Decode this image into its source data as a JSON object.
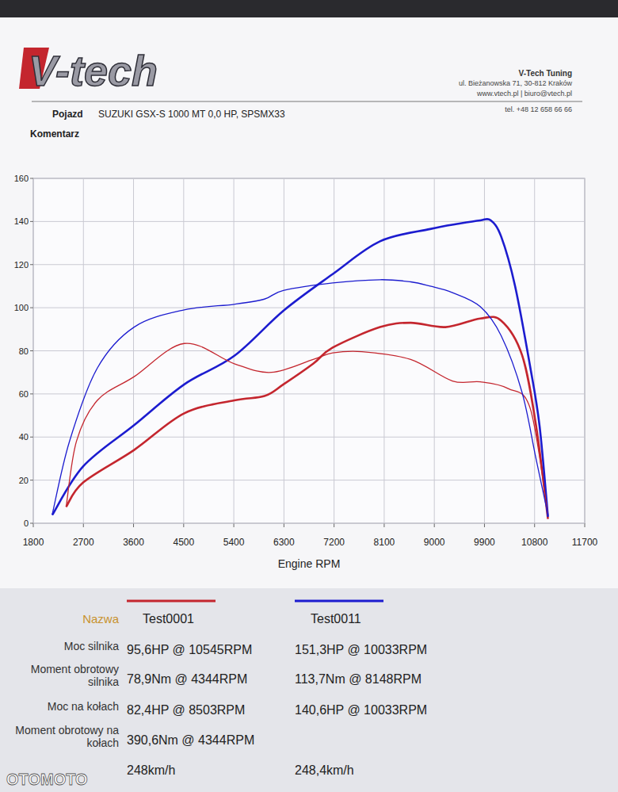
{
  "header": {
    "logo": "V-tech",
    "company": "V-Tech Tuning",
    "address": "ul. Bieżanowska 71, 30-812 Kraków",
    "contact": "www.vtech.pl | biuro@vtech.pl",
    "phone": "tel. +48 12 658 66 66",
    "vehicle_label": "Pojazd",
    "vehicle": "SUZUKI GSX-S 1000 MT 0,0 HP, SPSMX33",
    "comment_label": "Komentarz"
  },
  "chart_data": {
    "type": "line",
    "x_label": "Engine RPM",
    "xlim": [
      1800,
      11700
    ],
    "xticks": [
      1800,
      2700,
      3600,
      4500,
      5400,
      6300,
      7200,
      8100,
      9000,
      9900,
      10800,
      11700
    ],
    "ylim": [
      0,
      160
    ],
    "yticks": [
      0,
      20,
      40,
      60,
      80,
      100,
      120,
      140,
      160
    ],
    "grid": true,
    "legend": "bottom",
    "series": [
      {
        "name": "Test0001",
        "color": "#c4262e",
        "line_style": "thick",
        "x": [
          2390,
          2700,
          3610,
          4510,
          5410,
          5950,
          6290,
          6825,
          7175,
          8025,
          8575,
          9200,
          9825,
          10200,
          10575,
          10825,
          11040
        ],
        "values": [
          7.6,
          19,
          34,
          51,
          57,
          59,
          64.4,
          74,
          81.5,
          91,
          93,
          91,
          95,
          94,
          78,
          45.5,
          2
        ]
      },
      {
        "name": "Test0011",
        "color": "#1c1ccf",
        "line_style": "thick",
        "x": [
          2140,
          2700,
          3610,
          4510,
          5410,
          6290,
          7175,
          8025,
          8925,
          9450,
          9825,
          10010,
          10200,
          10450,
          10725,
          10890,
          11040
        ],
        "values": [
          3.8,
          26.5,
          45.5,
          64.4,
          77.7,
          98.6,
          115.6,
          130.8,
          136.5,
          139,
          140.5,
          140.6,
          133,
          110,
          72,
          45,
          3
        ]
      },
      {
        "name": "Test0001",
        "color": "#c4262e",
        "line_style": "thin",
        "x": [
          2390,
          2575,
          2950,
          3610,
          4510,
          5410,
          6075,
          6825,
          7175,
          7700,
          8575,
          9325,
          9825,
          10325,
          10725,
          11040
        ],
        "values": [
          7.6,
          38,
          57,
          68,
          83.4,
          74,
          70,
          76,
          79,
          79.6,
          76,
          66,
          65.6,
          62.5,
          53,
          4
        ]
      },
      {
        "name": "Test0011",
        "color": "#1c1ccf",
        "line_style": "thin",
        "x": [
          2140,
          2450,
          2950,
          3610,
          4510,
          5410,
          5950,
          6290,
          7175,
          8025,
          8575,
          8925,
          9325,
          9825,
          10200,
          10575,
          10825,
          11040
        ],
        "values": [
          4,
          38,
          72,
          91,
          99,
          101.6,
          104,
          108,
          111.5,
          113,
          112,
          110,
          107,
          100.5,
          87,
          60.7,
          30,
          4
        ]
      }
    ]
  },
  "results": {
    "header_label": "Nazwa",
    "rows": [
      {
        "label": "Moc silnika",
        "values": [
          "95,6HP @ 10545RPM",
          "151,3HP @ 10033RPM"
        ]
      },
      {
        "label": "Moment obrotowy silnika",
        "values": [
          "78,9Nm @ 4344RPM",
          "113,7Nm @ 8148RPM"
        ]
      },
      {
        "label": "Moc na kołach",
        "values": [
          "82,4HP @ 8503RPM",
          "140,6HP @ 10033RPM"
        ]
      },
      {
        "label": "Moment obrotowy na kołach",
        "values": [
          "390,6Nm @ 4344RPM",
          null
        ]
      },
      {
        "label": null,
        "values": [
          "248km/h",
          "248,4km/h"
        ]
      }
    ]
  },
  "watermark": "OTOMOTO"
}
